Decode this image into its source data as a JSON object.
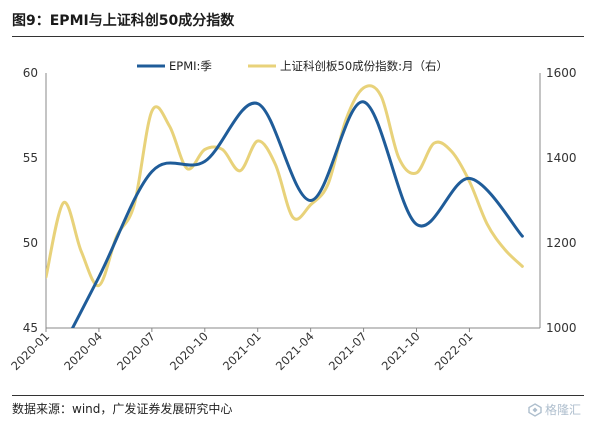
{
  "figure": {
    "title": "图9：EPMI与上证科创50成分指数",
    "source": "数据来源：wind，广发证券发展研究中心",
    "watermark": "格隆汇"
  },
  "chart_data": {
    "type": "line",
    "x_ticks": [
      "2020-01",
      "2020-04",
      "2020-07",
      "2020-10",
      "2021-01",
      "2021-04",
      "2021-07",
      "2021-10",
      "2022-01"
    ],
    "left_axis": {
      "ylim": [
        45,
        60
      ],
      "ticks": [
        "45",
        "50",
        "55",
        "60"
      ]
    },
    "right_axis": {
      "ylim": [
        1000,
        1600
      ],
      "ticks": [
        "1000",
        "1200",
        "1400",
        "1600"
      ]
    },
    "legend": {
      "placement": "top-center"
    },
    "series": [
      {
        "name": "EPMI:季",
        "axis": "left",
        "color": "#1f5c99",
        "x": [
          "2020-01",
          "2020-04",
          "2020-07",
          "2020-10",
          "2021-01",
          "2021-04",
          "2021-07",
          "2021-10",
          "2022-01",
          "2022-04"
        ],
        "values": [
          42.0,
          48.0,
          54.2,
          54.8,
          58.2,
          52.5,
          58.3,
          51.1,
          53.8,
          50.4
        ]
      },
      {
        "name": "上证科创板50成份指数:月（右）",
        "axis": "right",
        "color": "#e8d27a",
        "x": [
          "2020-01",
          "2020-02",
          "2020-03",
          "2020-04",
          "2020-05",
          "2020-06",
          "2020-07",
          "2020-08",
          "2020-09",
          "2020-10",
          "2020-11",
          "2020-12",
          "2021-01",
          "2021-02",
          "2021-03",
          "2021-04",
          "2021-05",
          "2021-06",
          "2021-07",
          "2021-08",
          "2021-09",
          "2021-10",
          "2021-11",
          "2021-12",
          "2022-01",
          "2022-02",
          "2022-03",
          "2022-04"
        ],
        "values": [
          1120,
          1295,
          1180,
          1100,
          1215,
          1290,
          1510,
          1475,
          1375,
          1420,
          1420,
          1370,
          1440,
          1385,
          1260,
          1290,
          1340,
          1490,
          1565,
          1545,
          1400,
          1365,
          1435,
          1415,
          1345,
          1245,
          1185,
          1145
        ]
      }
    ]
  }
}
